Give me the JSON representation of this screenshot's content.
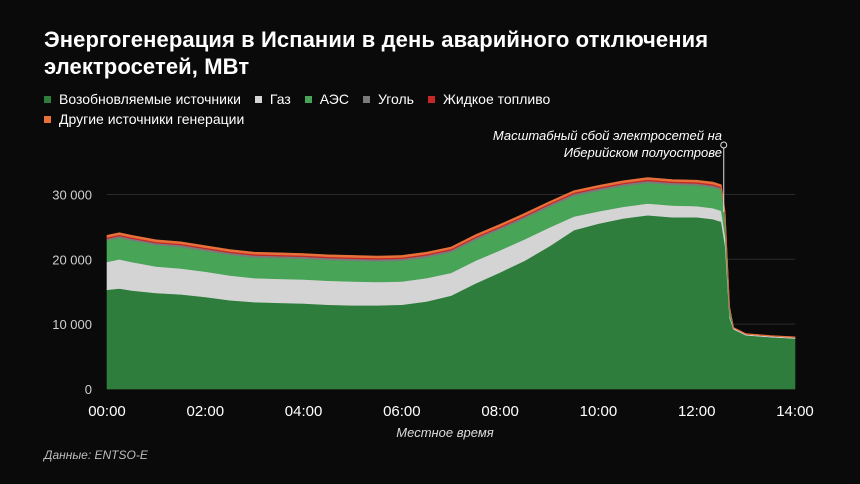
{
  "title": "Энергогенерация в Испании в день аварийного отключения электросетей, МВт",
  "legend": [
    {
      "label": "Возобновляемые источники",
      "color": "#2e7d3c"
    },
    {
      "label": "Газ",
      "color": "#d4d4d4"
    },
    {
      "label": "АЭС",
      "color": "#48a457"
    },
    {
      "label": "Уголь",
      "color": "#7a7a7a"
    },
    {
      "label": "Жидкое топливо",
      "color": "#c62828"
    },
    {
      "label": "Другие источники генерации",
      "color": "#e8703a"
    }
  ],
  "annotation": "Масштабный сбой электросетей на Иберийском полуострове",
  "source": "Данные: ENTSO-E",
  "chart_data": {
    "type": "area",
    "title": "Энергогенерация в Испании в день аварийного отключения электросетей, МВт",
    "xlabel": "Местное время",
    "ylabel": "",
    "x_ticks": [
      "00:00",
      "02:00",
      "04:00",
      "06:00",
      "08:00",
      "10:00",
      "12:00",
      "14:00"
    ],
    "y_ticks": [
      "0",
      "10 000",
      "20 000",
      "30 000"
    ],
    "xlim": [
      0,
      14
    ],
    "ylim": [
      0,
      33000
    ],
    "stacked": true,
    "x": [
      0,
      0.25,
      0.5,
      1,
      1.5,
      2,
      2.5,
      3,
      3.5,
      4,
      4.5,
      5,
      5.5,
      6,
      6.5,
      7,
      7.5,
      8,
      8.5,
      9,
      9.5,
      10,
      10.5,
      11,
      11.5,
      12,
      12.33,
      12.5,
      12.58,
      12.67,
      12.75,
      13,
      13.5,
      14
    ],
    "series": [
      {
        "name": "Возобновляемые источники",
        "color": "#2e7d3c",
        "values": [
          15300,
          15500,
          15200,
          14800,
          14600,
          14200,
          13700,
          13400,
          13300,
          13200,
          13000,
          12900,
          12900,
          13000,
          13500,
          14400,
          16300,
          18000,
          19800,
          22000,
          24500,
          25500,
          26300,
          26800,
          26500,
          26500,
          26200,
          25800,
          22000,
          11000,
          9200,
          8300,
          8000,
          7800
        ]
      },
      {
        "name": "Газ",
        "color": "#d4d4d4",
        "values": [
          4300,
          4500,
          4400,
          4100,
          4000,
          3900,
          3800,
          3700,
          3700,
          3700,
          3700,
          3700,
          3600,
          3600,
          3600,
          3500,
          3500,
          3400,
          3300,
          2900,
          2100,
          1900,
          1800,
          1800,
          1800,
          1700,
          1700,
          1700,
          1500,
          300,
          200,
          150,
          150,
          150
        ]
      },
      {
        "name": "АЭС",
        "color": "#48a457",
        "values": [
          3300,
          3300,
          3300,
          3300,
          3300,
          3200,
          3200,
          3200,
          3200,
          3200,
          3200,
          3200,
          3200,
          3200,
          3200,
          3200,
          3200,
          3200,
          3200,
          3200,
          3200,
          3200,
          3200,
          3200,
          3200,
          3200,
          3200,
          3200,
          3000,
          1200,
          0,
          0,
          0,
          0
        ]
      },
      {
        "name": "Уголь",
        "color": "#7a7a7a",
        "values": [
          300,
          300,
          300,
          300,
          300,
          300,
          300,
          300,
          300,
          300,
          300,
          300,
          300,
          300,
          300,
          300,
          300,
          300,
          300,
          300,
          300,
          300,
          300,
          300,
          300,
          300,
          300,
          300,
          300,
          100,
          0,
          0,
          0,
          0
        ]
      },
      {
        "name": "Жидкое топливо",
        "color": "#c62828",
        "values": [
          200,
          200,
          200,
          200,
          200,
          200,
          200,
          200,
          200,
          200,
          200,
          200,
          200,
          200,
          200,
          200,
          200,
          200,
          200,
          200,
          200,
          200,
          200,
          200,
          200,
          200,
          200,
          200,
          200,
          50,
          0,
          0,
          0,
          0
        ]
      },
      {
        "name": "Другие источники генерации",
        "color": "#e8703a",
        "values": [
          300,
          300,
          300,
          300,
          300,
          300,
          300,
          300,
          300,
          300,
          300,
          300,
          300,
          300,
          300,
          300,
          300,
          300,
          300,
          300,
          300,
          300,
          300,
          300,
          300,
          300,
          300,
          300,
          300,
          100,
          100,
          100,
          100,
          100
        ]
      }
    ],
    "event_marker": {
      "x": 12.55,
      "label": "Масштабный сбой электросетей на Иберийском полуострове"
    },
    "grid": true,
    "legend_position": "top"
  }
}
